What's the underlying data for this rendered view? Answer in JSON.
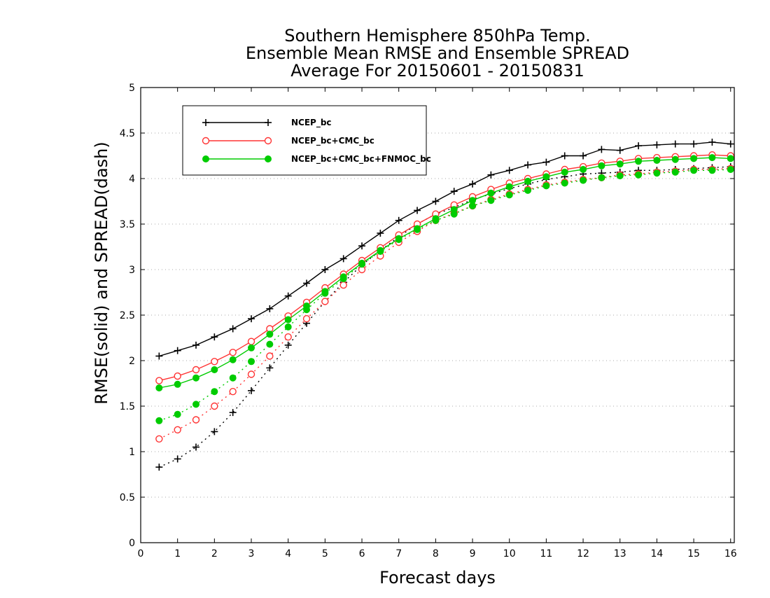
{
  "chart_data": {
    "type": "line",
    "title": [
      "Southern Hemisphere 850hPa Temp.",
      "Ensemble Mean RMSE and Ensemble SPREAD",
      "Average For 20150601 - 20150831"
    ],
    "xlabel": "Forecast days",
    "ylabel": "RMSE(solid) and SPREAD(dash)",
    "xlim": [
      0,
      16.1
    ],
    "ylim": [
      0,
      5
    ],
    "x_ticks": [
      "0",
      "1",
      "2",
      "3",
      "4",
      "5",
      "6",
      "7",
      "8",
      "9",
      "10",
      "11",
      "12",
      "13",
      "14",
      "15",
      "16"
    ],
    "y_ticks": [
      "0",
      "0.5",
      "1",
      "1.5",
      "2",
      "2.5",
      "3",
      "3.5",
      "4",
      "4.5",
      "5"
    ],
    "grid": "horizontal-dotted",
    "legend_position": "top-left",
    "x": [
      0.5,
      1,
      1.5,
      2,
      2.5,
      3,
      3.5,
      4,
      4.5,
      5,
      5.5,
      6,
      6.5,
      7,
      7.5,
      8,
      8.5,
      9,
      9.5,
      10,
      10.5,
      11,
      11.5,
      12,
      12.5,
      13,
      13.5,
      14,
      14.5,
      15,
      15.5,
      16
    ],
    "series": [
      {
        "name": "NCEP_bc",
        "color": "#000000",
        "marker": "plus",
        "rmse": [
          2.05,
          2.11,
          2.17,
          2.26,
          2.35,
          2.46,
          2.57,
          2.71,
          2.85,
          3.0,
          3.12,
          3.26,
          3.4,
          3.54,
          3.65,
          3.75,
          3.86,
          3.94,
          4.04,
          4.09,
          4.15,
          4.18,
          4.25,
          4.25,
          4.32,
          4.31,
          4.36,
          4.37,
          4.38,
          4.38,
          4.4,
          4.38
        ],
        "spread": [
          0.83,
          0.92,
          1.05,
          1.22,
          1.43,
          1.67,
          1.92,
          2.17,
          2.41,
          2.65,
          2.86,
          3.05,
          3.21,
          3.36,
          3.5,
          3.61,
          3.68,
          3.77,
          3.83,
          3.89,
          3.94,
          3.99,
          4.02,
          4.05,
          4.06,
          4.07,
          4.09,
          4.09,
          4.1,
          4.11,
          4.12,
          4.13
        ]
      },
      {
        "name": "NCEP_bc+CMC_bc",
        "color": "#ff3333",
        "marker": "open-circle",
        "rmse": [
          1.78,
          1.83,
          1.9,
          1.99,
          2.09,
          2.21,
          2.35,
          2.49,
          2.64,
          2.8,
          2.95,
          3.1,
          3.24,
          3.38,
          3.5,
          3.61,
          3.71,
          3.8,
          3.88,
          3.95,
          4.0,
          4.05,
          4.1,
          4.13,
          4.17,
          4.19,
          4.22,
          4.23,
          4.24,
          4.25,
          4.26,
          4.25
        ],
        "spread": [
          1.14,
          1.24,
          1.35,
          1.5,
          1.66,
          1.85,
          2.05,
          2.26,
          2.46,
          2.65,
          2.83,
          3.0,
          3.15,
          3.3,
          3.42,
          3.54,
          3.62,
          3.7,
          3.77,
          3.83,
          3.88,
          3.93,
          3.96,
          3.99,
          4.01,
          4.04,
          4.05,
          4.07,
          4.08,
          4.1,
          4.1,
          4.11
        ]
      },
      {
        "name": "NCEP_bc+CMC_bc+FNMOC_bc",
        "color": "#00cc00",
        "marker": "filled-circle",
        "rmse": [
          1.7,
          1.74,
          1.81,
          1.9,
          2.01,
          2.14,
          2.29,
          2.45,
          2.6,
          2.76,
          2.92,
          3.07,
          3.21,
          3.34,
          3.45,
          3.56,
          3.66,
          3.76,
          3.84,
          3.91,
          3.97,
          4.02,
          4.07,
          4.1,
          4.14,
          4.16,
          4.19,
          4.2,
          4.21,
          4.22,
          4.23,
          4.22
        ],
        "spread": [
          1.34,
          1.41,
          1.52,
          1.66,
          1.81,
          1.99,
          2.18,
          2.37,
          2.56,
          2.74,
          2.9,
          3.06,
          3.2,
          3.33,
          3.44,
          3.54,
          3.61,
          3.7,
          3.76,
          3.82,
          3.87,
          3.92,
          3.95,
          3.98,
          4.01,
          4.03,
          4.04,
          4.06,
          4.07,
          4.09,
          4.09,
          4.1
        ]
      }
    ]
  }
}
